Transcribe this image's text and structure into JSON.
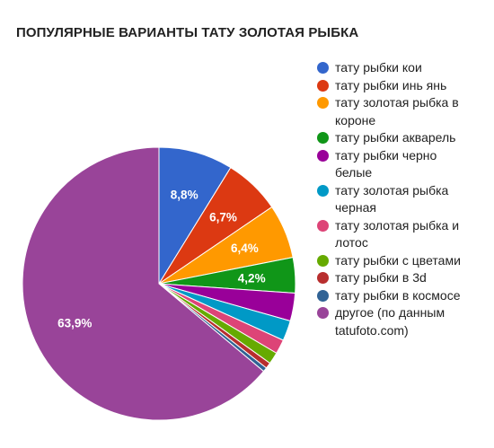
{
  "title": "ПОПУЛЯРНЫЕ ВАРИАНТЫ ТАТУ ЗОЛОТАЯ РЫБКА",
  "chart_data": {
    "type": "pie",
    "title": "ПОПУЛЯРНЫЕ ВАРИАНТЫ ТАТУ ЗОЛОТАЯ РЫБКА",
    "legend_position": "right",
    "slices": [
      {
        "name": "тату рыбки кои",
        "value": 8.8,
        "label": "8,8%",
        "color": "#3366cc"
      },
      {
        "name": "тату рыбки инь янь",
        "value": 6.7,
        "label": "6,7%",
        "color": "#dc3912"
      },
      {
        "name": "тату золотая рыбка в короне",
        "value": 6.4,
        "label": "6,4%",
        "color": "#ff9900"
      },
      {
        "name": "тату рыбки акварель",
        "value": 4.2,
        "label": "4,2%",
        "color": "#109618"
      },
      {
        "name": "тату рыбки черно белые",
        "value": 3.3,
        "label": "",
        "color": "#990099"
      },
      {
        "name": "тату золотая рыбка черная",
        "value": 2.4,
        "label": "",
        "color": "#0099c6"
      },
      {
        "name": "тату золотая рыбка и лотос",
        "value": 1.7,
        "label": "",
        "color": "#dd4477"
      },
      {
        "name": "тату рыбки с цветами",
        "value": 1.4,
        "label": "",
        "color": "#66aa00"
      },
      {
        "name": "тату рыбки в 3d",
        "value": 0.7,
        "label": "",
        "color": "#b82e2e"
      },
      {
        "name": "тату рыбки в космосе",
        "value": 0.5,
        "label": "",
        "color": "#316395"
      },
      {
        "name": "другое (по данным tatufoto.com)",
        "value": 63.9,
        "label": "63,9%",
        "color": "#994499"
      }
    ]
  }
}
